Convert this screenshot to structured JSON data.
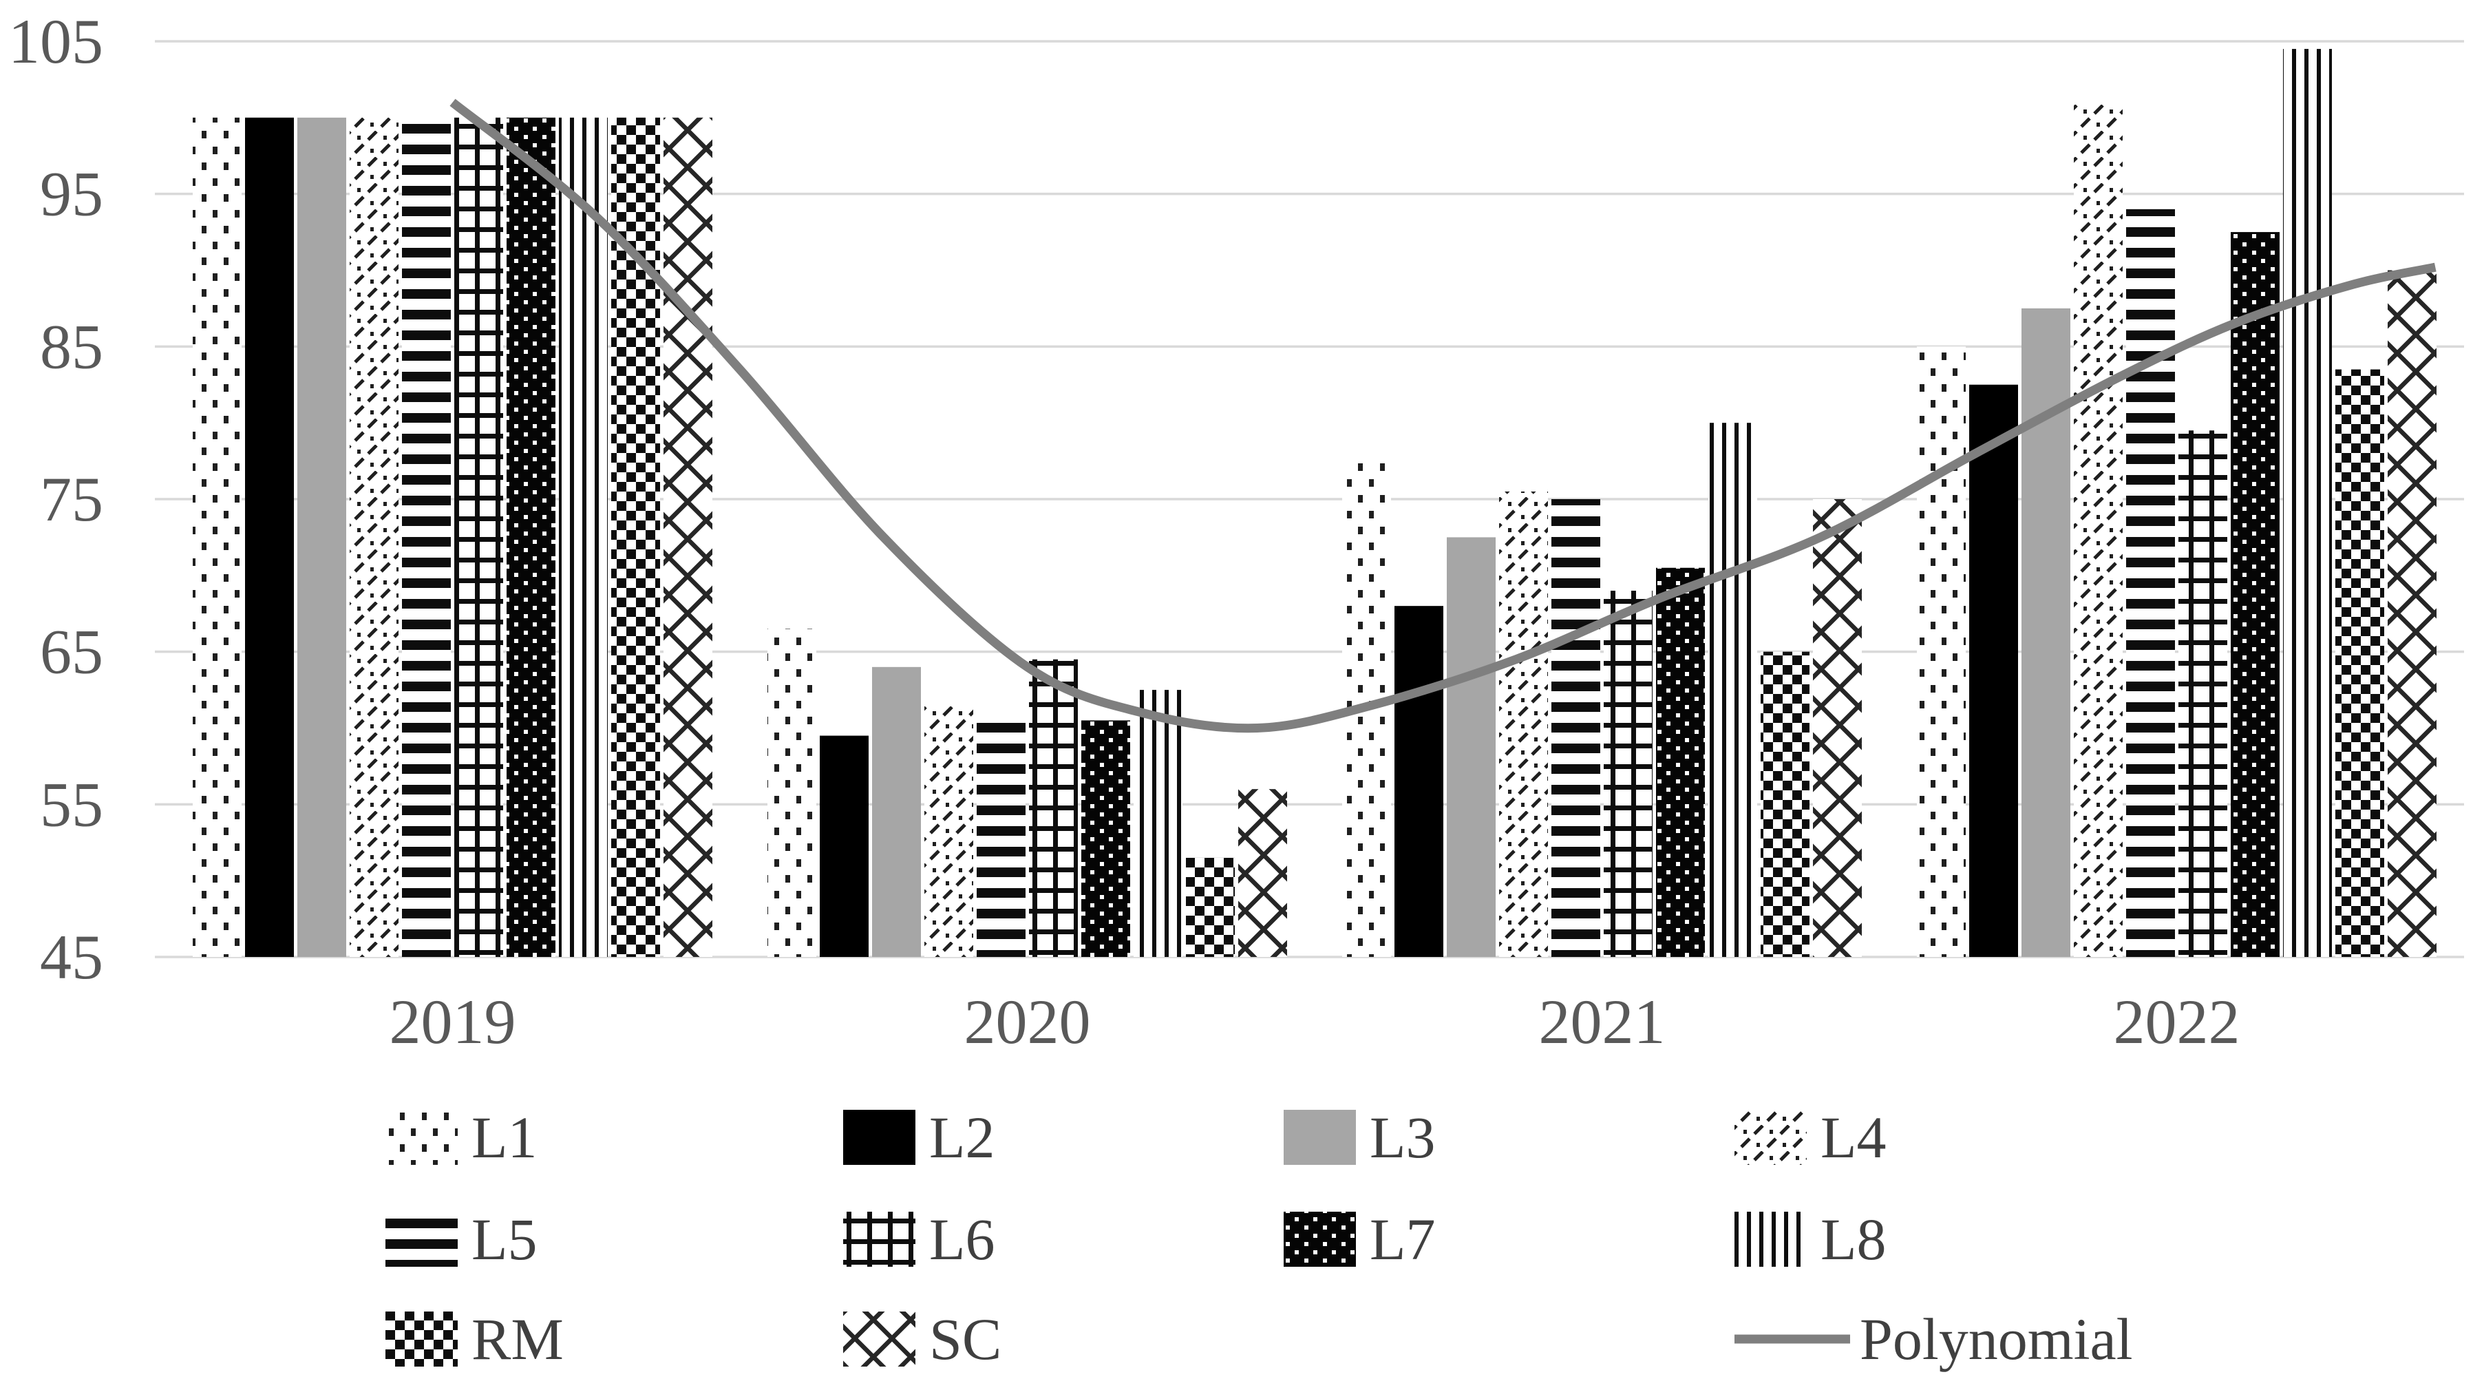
{
  "figure": {
    "description": "Clustered bar chart of indexed values (base 100 in 2019) for ten series L1-L8, RM, SC across 2019-2022, with a gray polynomial trendline dipping in 2020 and recovering by 2022",
    "background": "#ffffff"
  },
  "colors": {
    "gridline": "#d9d9d9",
    "axis_text": "#595959",
    "legend_text": "#404040",
    "bar_black": "#000000",
    "bar_gray": "#a6a6a6",
    "pattern_ink": "#1f1f1f",
    "trendline": "#7f7f7f"
  },
  "chart_data": {
    "type": "bar",
    "title": "",
    "xlabel": "",
    "ylabel": "",
    "categories": [
      "2019",
      "2020",
      "2021",
      "2022"
    ],
    "series": [
      {
        "name": "L1",
        "pattern": "dots-sparse",
        "values": [
          100,
          66.5,
          77.5,
          85
        ]
      },
      {
        "name": "L2",
        "pattern": "solid-black",
        "values": [
          100,
          59.5,
          68,
          82.5
        ]
      },
      {
        "name": "L3",
        "pattern": "solid-gray",
        "values": [
          100,
          64,
          72.5,
          87.5
        ]
      },
      {
        "name": "L4",
        "pattern": "diagonal-dash-dot",
        "values": [
          100,
          61.5,
          75.5,
          101
        ]
      },
      {
        "name": "L5",
        "pattern": "horizontal-lines",
        "values": [
          100,
          60.5,
          75,
          94
        ]
      },
      {
        "name": "L6",
        "pattern": "grid-lines",
        "values": [
          100,
          64.5,
          69,
          79.5
        ]
      },
      {
        "name": "L7",
        "pattern": "black-white-dots",
        "values": [
          100,
          60.5,
          70.5,
          92.5
        ]
      },
      {
        "name": "L8",
        "pattern": "vertical-lines",
        "values": [
          100,
          62.5,
          80,
          104.5
        ]
      },
      {
        "name": "RM",
        "pattern": "checkerboard",
        "values": [
          100,
          51.5,
          65,
          83.5
        ]
      },
      {
        "name": "SC",
        "pattern": "diamond-crosshatch",
        "values": [
          100,
          56,
          75,
          90
        ]
      }
    ],
    "trendline": {
      "name": "Polynomial",
      "color": "#7f7f7f",
      "points": [
        [
          0,
          101
        ],
        [
          0.25,
          93.5
        ],
        [
          0.5,
          83.5
        ],
        [
          0.75,
          72.5
        ],
        [
          1.0,
          64
        ],
        [
          1.2,
          61
        ],
        [
          1.4,
          60
        ],
        [
          1.6,
          61.5
        ],
        [
          1.85,
          64.5
        ],
        [
          2.1,
          68.5
        ],
        [
          2.38,
          72.5
        ],
        [
          2.65,
          78
        ],
        [
          2.9,
          83
        ],
        [
          3.1,
          86.5
        ],
        [
          3.3,
          89
        ],
        [
          3.45,
          90.2
        ]
      ]
    },
    "y_axis": {
      "min": 45,
      "max": 105,
      "step": 10,
      "ticks": [
        "45",
        "55",
        "65",
        "75",
        "85",
        "95",
        "105"
      ]
    },
    "x_axis": {
      "labels": [
        "2019",
        "2020",
        "2021",
        "2022"
      ]
    },
    "grid": true,
    "legend_position": "bottom",
    "legend_rows": [
      [
        "L1",
        "L2",
        "L3",
        "L4"
      ],
      [
        "L5",
        "L6",
        "L7",
        "L8"
      ],
      [
        "RM",
        "SC",
        "",
        "Polynomial"
      ]
    ]
  }
}
